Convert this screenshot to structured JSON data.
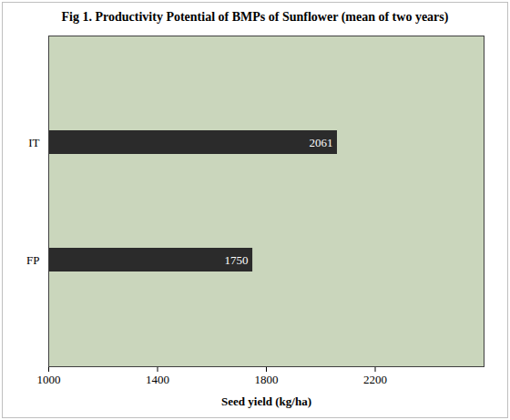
{
  "chart_data": {
    "type": "bar",
    "title": "Fig 1. Productivity Potential of BMPs  of Sunflower (mean of two years)",
    "orientation": "horizontal",
    "categories": [
      "IT",
      "FP"
    ],
    "values": [
      2061,
      1750
    ],
    "color": "#2b2b2b",
    "xlabel": "Seed yield (kg/ha)",
    "xlim": [
      1000,
      2600
    ],
    "xticks": [
      1000,
      1400,
      1800,
      2200
    ],
    "data_labels": true,
    "grid": false
  }
}
